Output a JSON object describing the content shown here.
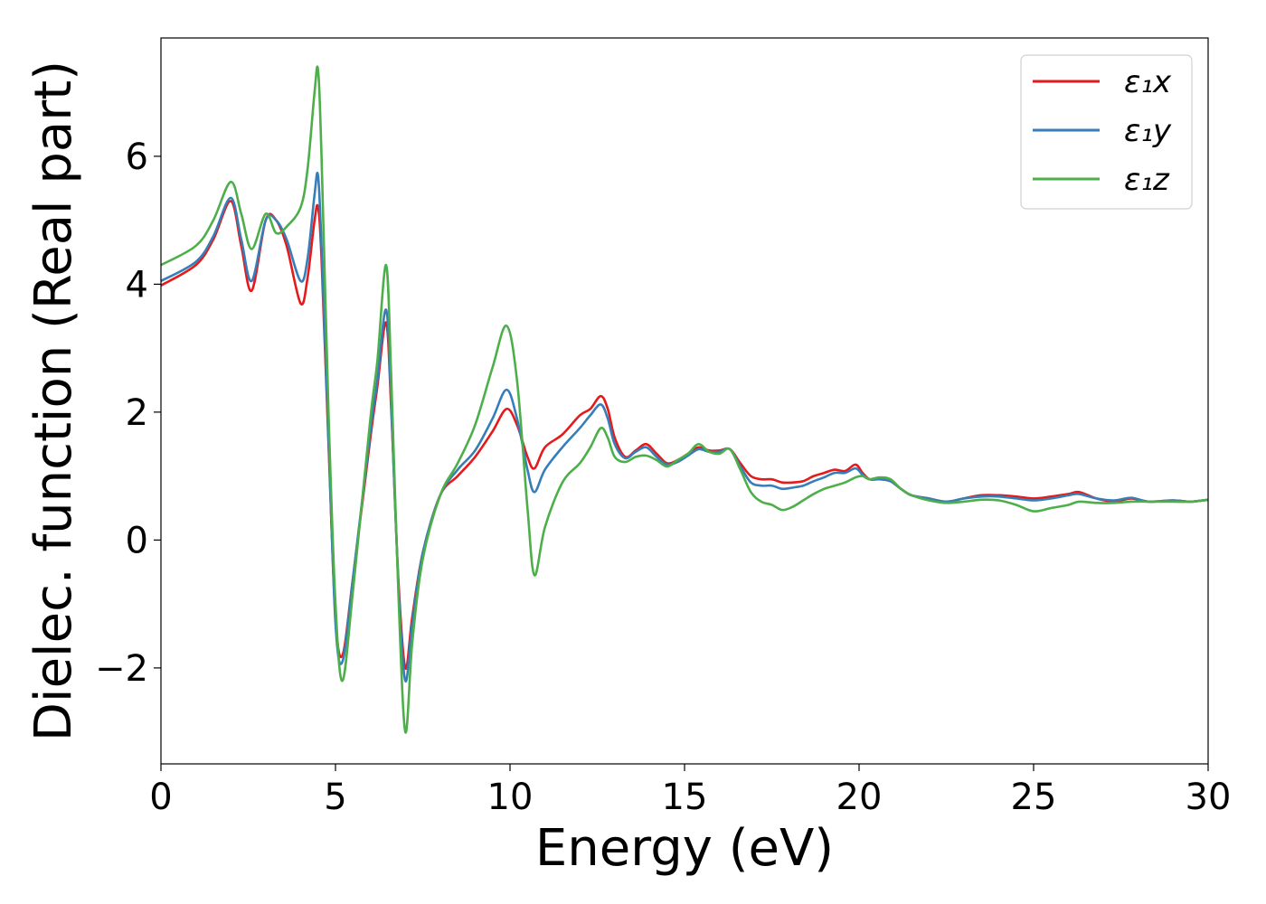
{
  "chart_data": {
    "type": "line",
    "xlabel": "Energy (eV)",
    "ylabel": "Dielec. function (Real part)",
    "xlim": [
      0,
      30
    ],
    "ylim": [
      -3.5,
      7.85
    ],
    "xticks": [
      0,
      5,
      10,
      15,
      20,
      25,
      30
    ],
    "yticks": [
      -2,
      0,
      2,
      4,
      6
    ],
    "xtick_labels": [
      "0",
      "5",
      "10",
      "15",
      "20",
      "25",
      "30"
    ],
    "ytick_labels": [
      "−2",
      "0",
      "2",
      "4",
      "6"
    ],
    "grid": false,
    "legend_position": "top-right",
    "series": [
      {
        "name": "ε₁x",
        "color": "#e41a1c",
        "x": [
          0,
          1,
          1.5,
          2,
          2.3,
          2.6,
          3,
          3.3,
          3.6,
          4,
          4.2,
          4.4,
          4.5,
          4.6,
          4.8,
          5.0,
          5.2,
          5.5,
          6.0,
          6.2,
          6.45,
          6.6,
          6.8,
          7.0,
          7.2,
          7.5,
          8.0,
          8.5,
          9.0,
          9.5,
          9.9,
          10.2,
          10.5,
          10.7,
          11.0,
          11.5,
          12.0,
          12.3,
          12.6,
          12.8,
          13.0,
          13.3,
          13.6,
          13.9,
          14.2,
          14.5,
          14.8,
          15.1,
          15.4,
          15.7,
          16.0,
          16.3,
          16.6,
          16.9,
          17.2,
          17.5,
          17.8,
          18.1,
          18.4,
          18.7,
          19.0,
          19.3,
          19.6,
          19.9,
          20.1,
          20.3,
          20.6,
          20.9,
          21.2,
          21.5,
          22.0,
          22.5,
          23.0,
          23.5,
          24.0,
          24.5,
          25.0,
          25.5,
          26.0,
          26.3,
          26.8,
          27.3,
          27.8,
          28.3,
          29.0,
          29.5,
          30
        ],
        "y": [
          3.98,
          4.3,
          4.7,
          5.3,
          4.6,
          3.9,
          5.0,
          5.0,
          4.6,
          3.7,
          4.1,
          5.0,
          5.2,
          4.4,
          1.5,
          -1.2,
          -1.8,
          -0.6,
          1.6,
          2.4,
          3.4,
          2.0,
          -0.6,
          -2.0,
          -1.2,
          -0.2,
          0.7,
          1.0,
          1.3,
          1.7,
          2.05,
          1.8,
          1.3,
          1.12,
          1.45,
          1.65,
          1.95,
          2.05,
          2.25,
          2.05,
          1.6,
          1.3,
          1.4,
          1.5,
          1.35,
          1.2,
          1.25,
          1.35,
          1.45,
          1.4,
          1.4,
          1.42,
          1.2,
          1.0,
          0.95,
          0.95,
          0.9,
          0.9,
          0.92,
          1.0,
          1.05,
          1.1,
          1.08,
          1.18,
          1.05,
          0.95,
          0.95,
          0.92,
          0.8,
          0.7,
          0.65,
          0.6,
          0.65,
          0.7,
          0.7,
          0.68,
          0.65,
          0.68,
          0.72,
          0.75,
          0.65,
          0.6,
          0.65,
          0.6,
          0.62,
          0.6,
          0.63
        ]
      },
      {
        "name": "ε₁y",
        "color": "#377eb8",
        "x": [
          0,
          1,
          1.5,
          2,
          2.3,
          2.6,
          3,
          3.3,
          3.6,
          4,
          4.2,
          4.4,
          4.5,
          4.6,
          4.8,
          5.0,
          5.2,
          5.5,
          6.0,
          6.2,
          6.45,
          6.6,
          6.8,
          7.0,
          7.2,
          7.5,
          8.0,
          8.5,
          9.0,
          9.5,
          9.9,
          10.2,
          10.5,
          10.7,
          11.0,
          11.5,
          12.0,
          12.3,
          12.6,
          12.8,
          13.0,
          13.3,
          13.6,
          13.9,
          14.2,
          14.5,
          14.8,
          15.1,
          15.4,
          15.7,
          16.0,
          16.3,
          16.6,
          16.9,
          17.2,
          17.5,
          17.8,
          18.1,
          18.4,
          18.7,
          19.0,
          19.3,
          19.6,
          19.9,
          20.1,
          20.3,
          20.6,
          20.9,
          21.2,
          21.5,
          22.0,
          22.5,
          23.0,
          23.5,
          24.0,
          24.5,
          25.0,
          25.5,
          26.0,
          26.3,
          26.8,
          27.3,
          27.8,
          28.3,
          29.0,
          29.5,
          30
        ],
        "y": [
          4.05,
          4.35,
          4.75,
          5.35,
          4.7,
          4.05,
          5.0,
          5.0,
          4.7,
          4.05,
          4.4,
          5.4,
          5.7,
          4.6,
          1.6,
          -1.3,
          -1.9,
          -0.6,
          1.7,
          2.5,
          3.6,
          2.1,
          -0.7,
          -2.2,
          -1.3,
          -0.2,
          0.7,
          1.1,
          1.4,
          1.9,
          2.35,
          1.9,
          1.1,
          0.75,
          1.1,
          1.45,
          1.75,
          1.95,
          2.12,
          1.9,
          1.5,
          1.28,
          1.38,
          1.45,
          1.3,
          1.18,
          1.22,
          1.32,
          1.42,
          1.38,
          1.38,
          1.42,
          1.15,
          0.9,
          0.85,
          0.85,
          0.8,
          0.82,
          0.85,
          0.92,
          0.98,
          1.05,
          1.05,
          1.12,
          1.02,
          0.95,
          0.95,
          0.92,
          0.8,
          0.7,
          0.65,
          0.6,
          0.65,
          0.68,
          0.68,
          0.65,
          0.62,
          0.65,
          0.7,
          0.72,
          0.65,
          0.62,
          0.66,
          0.6,
          0.62,
          0.6,
          0.63
        ]
      },
      {
        "name": "ε₁z",
        "color": "#4daf4a",
        "x": [
          0,
          1,
          1.5,
          2,
          2.3,
          2.6,
          3,
          3.3,
          3.6,
          4,
          4.2,
          4.4,
          4.5,
          4.6,
          4.8,
          5.0,
          5.2,
          5.5,
          6.0,
          6.2,
          6.45,
          6.6,
          6.8,
          7.0,
          7.2,
          7.5,
          8.0,
          8.5,
          9.0,
          9.5,
          9.9,
          10.2,
          10.5,
          10.7,
          11.0,
          11.5,
          12.0,
          12.3,
          12.6,
          12.8,
          13.0,
          13.3,
          13.6,
          13.9,
          14.2,
          14.5,
          14.8,
          15.1,
          15.4,
          15.7,
          16.0,
          16.3,
          16.6,
          16.9,
          17.2,
          17.5,
          17.8,
          18.1,
          18.4,
          18.7,
          19.0,
          19.3,
          19.6,
          19.9,
          20.1,
          20.3,
          20.6,
          20.9,
          21.2,
          21.5,
          22.0,
          22.5,
          23.0,
          23.5,
          24.0,
          24.5,
          25.0,
          25.5,
          26.0,
          26.3,
          26.8,
          27.3,
          27.8,
          28.3,
          29.0,
          29.5,
          30
        ],
        "y": [
          4.3,
          4.6,
          5.0,
          5.6,
          5.1,
          4.55,
          5.1,
          4.8,
          4.9,
          5.2,
          5.8,
          7.0,
          7.35,
          6.0,
          2.0,
          -1.0,
          -2.2,
          -0.8,
          1.9,
          2.8,
          4.3,
          2.5,
          -0.8,
          -3.0,
          -1.6,
          -0.3,
          0.7,
          1.2,
          1.8,
          2.7,
          3.35,
          2.5,
          0.5,
          -0.55,
          0.2,
          0.9,
          1.2,
          1.45,
          1.75,
          1.6,
          1.3,
          1.22,
          1.3,
          1.32,
          1.25,
          1.15,
          1.25,
          1.35,
          1.5,
          1.38,
          1.35,
          1.42,
          1.1,
          0.75,
          0.6,
          0.55,
          0.47,
          0.52,
          0.62,
          0.72,
          0.8,
          0.85,
          0.9,
          0.98,
          1.0,
          0.95,
          0.98,
          0.95,
          0.8,
          0.7,
          0.62,
          0.58,
          0.6,
          0.63,
          0.62,
          0.55,
          0.45,
          0.5,
          0.55,
          0.6,
          0.58,
          0.58,
          0.6,
          0.6,
          0.6,
          0.6,
          0.63
        ]
      }
    ]
  }
}
